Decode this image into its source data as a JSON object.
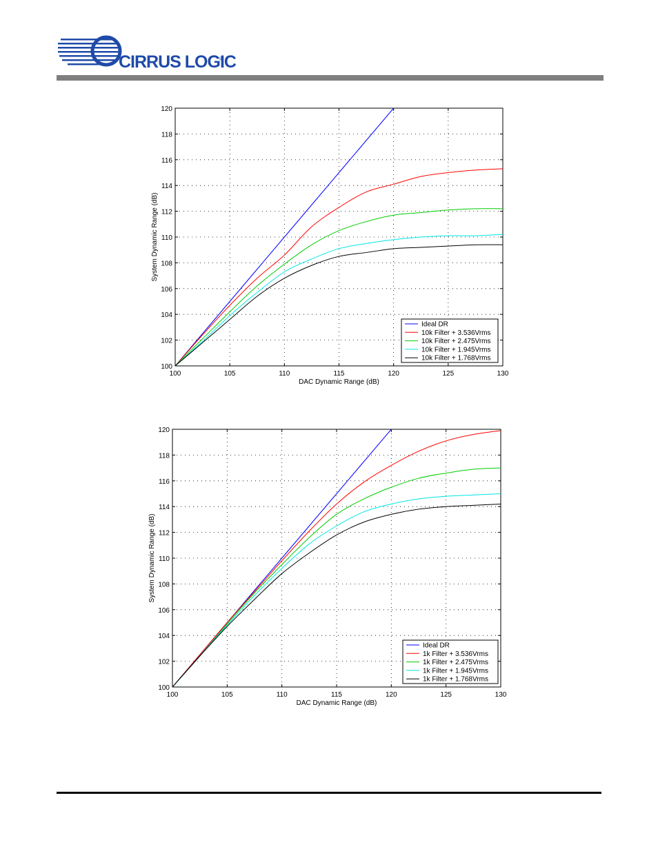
{
  "header": {
    "brand": "CIRRUS LOGIC",
    "registered_mark": "®",
    "accent_color": "#7f7f7f",
    "logo_color": "#1f4aa8"
  },
  "chart_data": [
    {
      "type": "line",
      "title": "",
      "xlabel": "DAC Dynamic Range (dB)",
      "ylabel": "System Dynamic Range (dB)",
      "xlim": [
        100,
        130
      ],
      "ylim": [
        100,
        120
      ],
      "xticks": [
        100,
        105,
        110,
        115,
        120,
        125,
        130
      ],
      "yticks": [
        100,
        102,
        104,
        106,
        108,
        110,
        112,
        114,
        116,
        118,
        120
      ],
      "grid": true,
      "legend_position": "bottom-right",
      "series": [
        {
          "name": "Ideal DR",
          "color": "#0000ff",
          "x": [
            100,
            105,
            110,
            115,
            120
          ],
          "y": [
            100,
            105,
            110,
            115,
            120
          ]
        },
        {
          "name": "10k Filter + 3.536Vrms",
          "color": "#ff0000",
          "x": [
            100,
            102.5,
            105,
            107.5,
            110,
            112.5,
            115,
            117.5,
            120,
            122.5,
            125,
            127.5,
            130
          ],
          "y": [
            100,
            102.4,
            104.7,
            106.8,
            108.6,
            110.8,
            112.3,
            113.5,
            114.1,
            114.7,
            115.0,
            115.2,
            115.3
          ]
        },
        {
          "name": "10k Filter + 2.475Vrms",
          "color": "#00cc00",
          "x": [
            100,
            102.5,
            105,
            107.5,
            110,
            112.5,
            115,
            117.5,
            120,
            122.5,
            125,
            127.5,
            130
          ],
          "y": [
            100,
            102.1,
            104.2,
            106.2,
            107.9,
            109.4,
            110.5,
            111.2,
            111.7,
            111.9,
            112.1,
            112.2,
            112.2
          ]
        },
        {
          "name": "10k Filter + 1.945Vrms",
          "color": "#00e5e5",
          "x": [
            100,
            102.5,
            105,
            107.5,
            110,
            112.5,
            115,
            117.5,
            120,
            122.5,
            125,
            127.5,
            130
          ],
          "y": [
            100,
            101.9,
            103.9,
            105.7,
            107.3,
            108.3,
            109.1,
            109.5,
            109.8,
            110.0,
            110.1,
            110.1,
            110.2
          ]
        },
        {
          "name": "10k Filter + 1.768Vrms",
          "color": "#000000",
          "x": [
            100,
            102.5,
            105,
            107.5,
            110,
            112.5,
            115,
            117.5,
            120,
            122.5,
            125,
            127.5,
            130
          ],
          "y": [
            100,
            101.8,
            103.6,
            105.4,
            106.8,
            107.8,
            108.5,
            108.8,
            109.1,
            109.2,
            109.3,
            109.4,
            109.4
          ]
        }
      ]
    },
    {
      "type": "line",
      "title": "",
      "xlabel": "DAC Dynamic Range (dB)",
      "ylabel": "System Dynamic Range (dB)",
      "xlim": [
        100,
        130
      ],
      "ylim": [
        100,
        120
      ],
      "xticks": [
        100,
        105,
        110,
        115,
        120,
        125,
        130
      ],
      "yticks": [
        100,
        102,
        104,
        106,
        108,
        110,
        112,
        114,
        116,
        118,
        120
      ],
      "grid": true,
      "legend_position": "bottom-right",
      "series": [
        {
          "name": "Ideal DR",
          "color": "#0000ff",
          "x": [
            100,
            105,
            110,
            115,
            120
          ],
          "y": [
            100,
            105,
            110,
            115,
            120
          ]
        },
        {
          "name": "1k Filter + 3.536Vrms",
          "color": "#ff0000",
          "x": [
            100,
            102.5,
            105,
            107.5,
            110,
            112.5,
            115,
            117.5,
            120,
            122.5,
            125,
            127.5,
            130
          ],
          "y": [
            100,
            102.5,
            105,
            107.4,
            109.8,
            112.1,
            114.2,
            115.9,
            117.2,
            118.3,
            119.1,
            119.6,
            119.9
          ]
        },
        {
          "name": "1k Filter + 2.475Vrms",
          "color": "#00cc00",
          "x": [
            100,
            102.5,
            105,
            107.5,
            110,
            112.5,
            115,
            117.5,
            120,
            122.5,
            125,
            127.5,
            130
          ],
          "y": [
            100,
            102.4,
            104.9,
            107.3,
            109.5,
            111.6,
            113.4,
            114.6,
            115.5,
            116.2,
            116.6,
            116.9,
            117.0
          ]
        },
        {
          "name": "1k Filter + 1.945Vrms",
          "color": "#00e5e5",
          "x": [
            100,
            102.5,
            105,
            107.5,
            110,
            112.5,
            115,
            117.5,
            120,
            122.5,
            125,
            127.5,
            130
          ],
          "y": [
            100,
            102.4,
            104.8,
            107.1,
            109.2,
            111.1,
            112.5,
            113.6,
            114.2,
            114.6,
            114.8,
            114.9,
            115.0
          ]
        },
        {
          "name": "1k Filter + 1.768Vrms",
          "color": "#000000",
          "x": [
            100,
            102.5,
            105,
            107.5,
            110,
            112.5,
            115,
            117.5,
            120,
            122.5,
            125,
            127.5,
            130
          ],
          "y": [
            100,
            102.4,
            104.7,
            106.8,
            108.8,
            110.4,
            111.8,
            112.8,
            113.4,
            113.8,
            114.0,
            114.1,
            114.2
          ]
        }
      ]
    }
  ]
}
